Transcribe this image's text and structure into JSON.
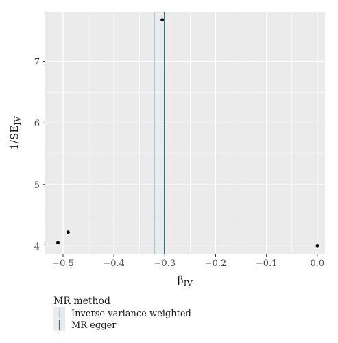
{
  "chart_data": {
    "type": "scatter",
    "xlabel_main": "β",
    "xlabel_sub": "IV",
    "ylabel_main": "1/SE",
    "ylabel_sub": "IV",
    "xlim": [
      -0.535,
      0.015
    ],
    "ylim": [
      3.87,
      7.8
    ],
    "x_ticks": [
      -0.5,
      -0.4,
      -0.3,
      -0.2,
      -0.1,
      0.0
    ],
    "x_tick_labels": [
      "−0.5",
      "−0.4",
      "−0.3",
      "−0.2",
      "−0.1",
      "0.0"
    ],
    "y_ticks": [
      4,
      5,
      6,
      7
    ],
    "y_tick_labels": [
      "4",
      "5",
      "6",
      "7"
    ],
    "grid": true,
    "points": [
      {
        "x": -0.305,
        "y": 7.68
      },
      {
        "x": -0.49,
        "y": 4.22
      },
      {
        "x": -0.51,
        "y": 4.05
      },
      {
        "x": 0.0,
        "y": 4.0
      }
    ],
    "lines": [
      {
        "method": "Inverse variance weighted",
        "x": -0.32,
        "color": "#a6cee3"
      },
      {
        "method": "MR egger",
        "x": -0.301,
        "color": "#1f78b4"
      }
    ],
    "legend": {
      "title": "MR method",
      "placement": "bottom-left",
      "entries": [
        "Inverse variance weighted",
        "MR egger"
      ]
    },
    "colors": {
      "panel_background": "#ebebeb",
      "grid": "#ffffff",
      "point": "#000000"
    }
  }
}
